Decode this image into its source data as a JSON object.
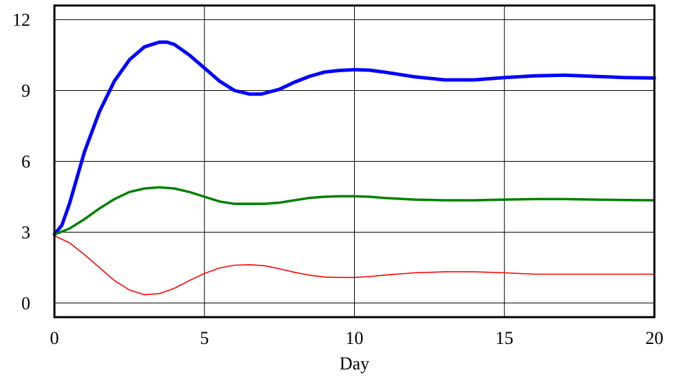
{
  "chart_data": {
    "type": "line",
    "title": "",
    "xlabel": "Day",
    "ylabel": "",
    "xlim": [
      0,
      20
    ],
    "ylim": [
      -0.6,
      12.6
    ],
    "xticks": [
      0,
      5,
      10,
      15,
      20
    ],
    "yticks": [
      0,
      3,
      6,
      9,
      12
    ],
    "xtick_labels": [
      "0",
      "5",
      "10",
      "15",
      "20"
    ],
    "ytick_labels": [
      "0",
      "3",
      "6",
      "9",
      "12"
    ],
    "grid": true,
    "legend": "none",
    "series": [
      {
        "color": "#0000ff",
        "line_width": "thick",
        "x": [
          0,
          0.25,
          0.5,
          0.75,
          1,
          1.5,
          2,
          2.5,
          3,
          3.5,
          3.75,
          4,
          4.5,
          5,
          5.5,
          6,
          6.5,
          6.9,
          7.5,
          8,
          8.5,
          9,
          9.5,
          10,
          10.5,
          11,
          11.5,
          12,
          13,
          14,
          15,
          16,
          17,
          18,
          19,
          20
        ],
        "y": [
          2.9,
          3.3,
          4.2,
          5.3,
          6.4,
          8.1,
          9.4,
          10.3,
          10.85,
          11.05,
          11.05,
          10.95,
          10.5,
          9.95,
          9.4,
          9.0,
          8.85,
          8.85,
          9.05,
          9.35,
          9.6,
          9.78,
          9.85,
          9.88,
          9.86,
          9.78,
          9.68,
          9.58,
          9.45,
          9.45,
          9.55,
          9.62,
          9.65,
          9.6,
          9.55,
          9.53
        ]
      },
      {
        "color": "#008000",
        "line_width": "medium",
        "x": [
          0,
          0.5,
          1,
          1.5,
          2,
          2.5,
          3,
          3.5,
          4,
          4.5,
          5,
          5.5,
          6,
          6.5,
          7,
          7.5,
          8,
          8.5,
          9,
          9.5,
          10,
          10.5,
          11,
          12,
          13,
          14,
          15,
          16,
          17,
          18,
          19,
          20
        ],
        "y": [
          2.9,
          3.15,
          3.55,
          4.0,
          4.4,
          4.7,
          4.85,
          4.9,
          4.85,
          4.7,
          4.5,
          4.3,
          4.2,
          4.2,
          4.2,
          4.25,
          4.35,
          4.45,
          4.5,
          4.52,
          4.52,
          4.5,
          4.45,
          4.38,
          4.35,
          4.35,
          4.38,
          4.4,
          4.4,
          4.38,
          4.36,
          4.35
        ]
      },
      {
        "color": "#ff0000",
        "line_width": "thin",
        "x": [
          0,
          0.5,
          1,
          1.5,
          2,
          2.5,
          3,
          3.5,
          4,
          4.5,
          5,
          5.5,
          6,
          6.5,
          7,
          7.5,
          8,
          8.5,
          9,
          9.5,
          10,
          10.5,
          11,
          12,
          13,
          14,
          15,
          16,
          17,
          18,
          19,
          20
        ],
        "y": [
          2.85,
          2.55,
          2.05,
          1.5,
          0.95,
          0.55,
          0.35,
          0.4,
          0.62,
          0.95,
          1.25,
          1.48,
          1.6,
          1.62,
          1.58,
          1.45,
          1.3,
          1.18,
          1.1,
          1.08,
          1.08,
          1.12,
          1.18,
          1.28,
          1.32,
          1.32,
          1.28,
          1.22,
          1.22,
          1.22,
          1.22,
          1.22
        ]
      }
    ]
  }
}
